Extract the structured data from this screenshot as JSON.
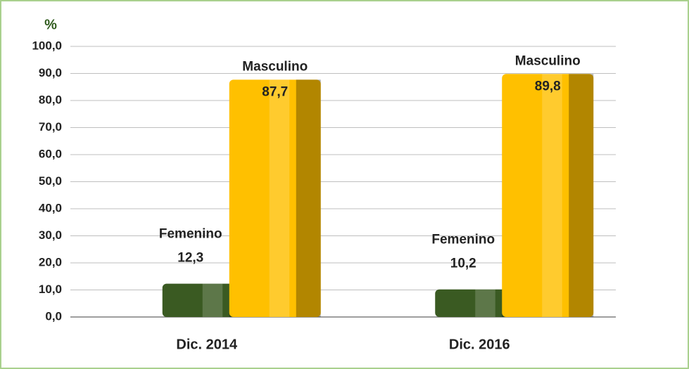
{
  "chart_data": {
    "type": "bar",
    "y_label": "%",
    "categories": [
      "Dic. 2014",
      "Dic. 2016"
    ],
    "series": [
      {
        "name": "Femenino",
        "color": "#3a5a22",
        "values": [
          12.3,
          10.2
        ],
        "value_labels": [
          "12,3",
          "10,2"
        ]
      },
      {
        "name": "Masculino",
        "color": "#ffc000",
        "values": [
          87.7,
          89.8
        ],
        "value_labels": [
          "87,7",
          "89,8"
        ]
      }
    ],
    "ylim": [
      0,
      100
    ],
    "yticks": [
      {
        "value": 0,
        "label": "0,0"
      },
      {
        "value": 10,
        "label": "10,0"
      },
      {
        "value": 20,
        "label": "20,0"
      },
      {
        "value": 30,
        "label": "30,0"
      },
      {
        "value": 40,
        "label": "40,0"
      },
      {
        "value": 50,
        "label": "50,0"
      },
      {
        "value": 60,
        "label": "60,0"
      },
      {
        "value": 70,
        "label": "70,0"
      },
      {
        "value": 80,
        "label": "80,0"
      },
      {
        "value": 90,
        "label": "90,0"
      },
      {
        "value": 100,
        "label": "100,0"
      }
    ],
    "grid": true
  }
}
